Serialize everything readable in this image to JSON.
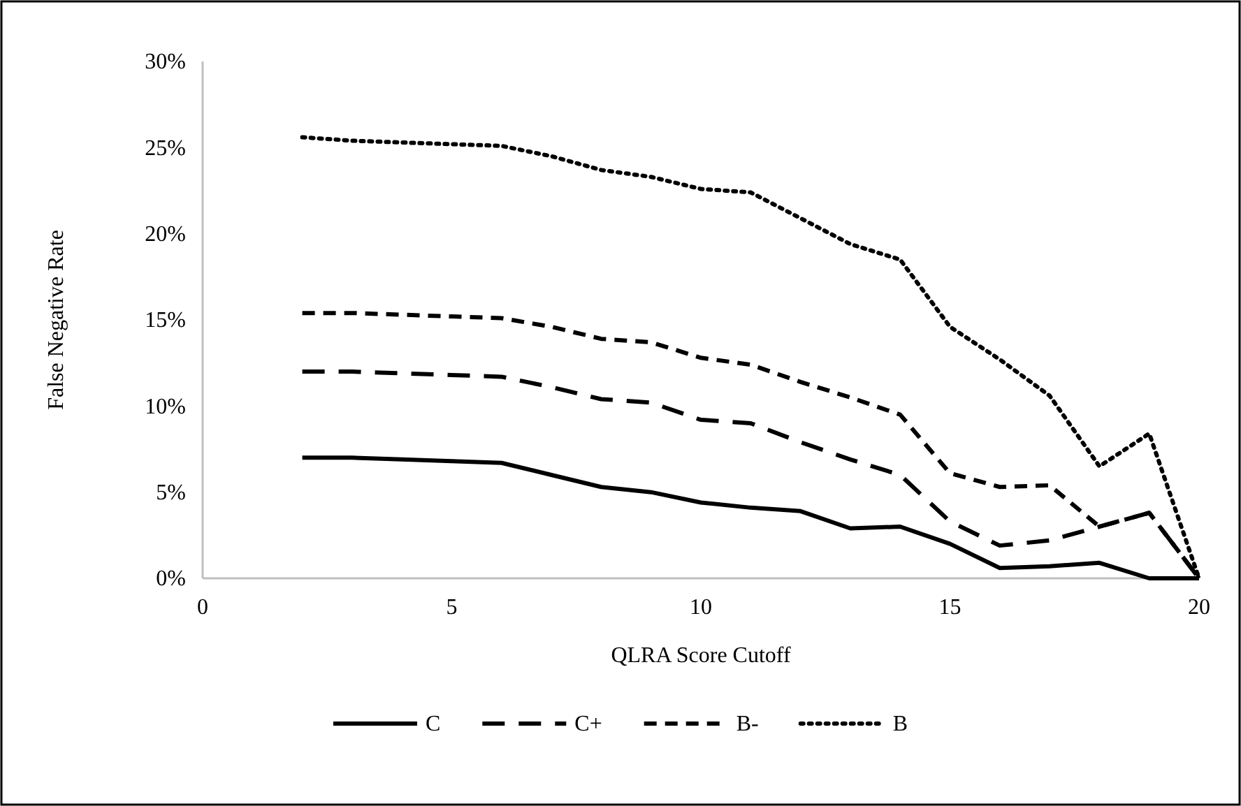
{
  "chart_data": {
    "type": "line",
    "xlabel": "QLRA Score Cutoff",
    "ylabel": "False Negative Rate",
    "x": [
      2,
      3,
      4,
      5,
      6,
      7,
      8,
      9,
      10,
      11,
      12,
      13,
      14,
      15,
      16,
      17,
      18,
      19,
      20
    ],
    "xlim": [
      0,
      20
    ],
    "xticks": [
      0,
      5,
      10,
      15,
      20
    ],
    "ylim": [
      0,
      30
    ],
    "yticks": [
      {
        "value": 0,
        "label": "0%"
      },
      {
        "value": 5,
        "label": "5%"
      },
      {
        "value": 10,
        "label": "10%"
      },
      {
        "value": 15,
        "label": "15%"
      },
      {
        "value": 20,
        "label": "20%"
      },
      {
        "value": 25,
        "label": "25%"
      },
      {
        "value": 30,
        "label": "30%"
      }
    ],
    "grid": false,
    "legend": "bottom",
    "marker": "none",
    "series": [
      {
        "name": "C",
        "color": "#000000",
        "line_style": "solid",
        "values": [
          7.0,
          7.0,
          6.9,
          6.8,
          6.7,
          6.0,
          5.3,
          5.0,
          4.4,
          4.1,
          3.9,
          2.9,
          3.0,
          2.0,
          0.6,
          0.7,
          0.9,
          0,
          0
        ]
      },
      {
        "name": "C+",
        "color": "#000000",
        "line_style": "longdash",
        "values": [
          12.0,
          12.0,
          11.9,
          11.8,
          11.7,
          11.1,
          10.4,
          10.2,
          9.2,
          9.0,
          7.9,
          6.9,
          6.0,
          3.3,
          1.9,
          2.2,
          3.0,
          3.8,
          0
        ]
      },
      {
        "name": "B-",
        "color": "#000000",
        "line_style": "dashed",
        "values": [
          15.4,
          15.4,
          15.3,
          15.2,
          15.1,
          14.6,
          13.9,
          13.7,
          12.8,
          12.4,
          11.4,
          10.5,
          9.5,
          6.1,
          5.3,
          5.4,
          3.0,
          3.8,
          0
        ]
      },
      {
        "name": "B",
        "color": "#000000",
        "line_style": "dotted",
        "values": [
          25.6,
          25.4,
          25.3,
          25.2,
          25.1,
          24.5,
          23.7,
          23.3,
          22.6,
          22.4,
          20.9,
          19.4,
          18.5,
          14.6,
          12.7,
          10.6,
          6.5,
          8.4,
          0
        ]
      }
    ]
  }
}
